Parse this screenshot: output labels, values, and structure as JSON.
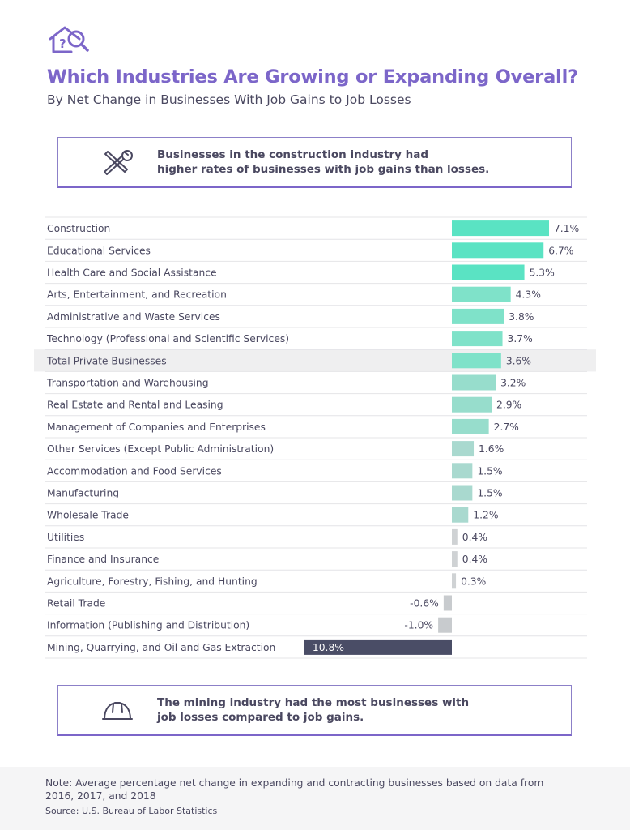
{
  "header": {
    "title": "Which Industries Are Growing or Expanding Overall?",
    "subtitle": "By Net Change in Businesses With Job Gains to Job Losses"
  },
  "callouts": {
    "top": {
      "line1": "Businesses in the construction industry had",
      "line2": "higher rates of businesses with job gains than losses.",
      "icon": "tools-icon"
    },
    "bottom": {
      "line1": "The mining industry had the most businesses with",
      "line2": "job losses compared to job gains.",
      "icon": "hard-hat-icon"
    }
  },
  "chart_data": {
    "type": "bar",
    "orientation": "horizontal",
    "categories": [
      "Construction",
      "Educational Services",
      "Health Care and Social Assistance",
      "Arts, Entertainment, and Recreation",
      "Administrative and Waste Services",
      "Technology (Professional and Scientific Services)",
      "Total Private Businesses",
      "Transportation and Warehousing",
      "Real Estate and Rental and Leasing",
      "Management of Companies and Enterprises",
      "Other Services (Except Public Administration)",
      "Accommodation and Food Services",
      "Manufacturing",
      "Wholesale Trade",
      "Utilities",
      "Finance and Insurance",
      "Agriculture, Forestry, Fishing, and Hunting",
      "Retail Trade",
      "Information (Publishing and Distribution)",
      "Mining, Quarrying, and Oil and Gas Extraction"
    ],
    "values": [
      7.1,
      6.7,
      5.3,
      4.3,
      3.8,
      3.7,
      3.6,
      3.2,
      2.9,
      2.7,
      1.6,
      1.5,
      1.5,
      1.2,
      0.4,
      0.4,
      0.3,
      -0.6,
      -1.0,
      -10.8
    ],
    "labels": [
      "7.1%",
      "6.7%",
      "5.3%",
      "4.3%",
      "3.8%",
      "3.7%",
      "3.6%",
      "3.2%",
      "2.9%",
      "2.7%",
      "1.6%",
      "1.5%",
      "1.5%",
      "1.2%",
      "0.4%",
      "0.4%",
      "0.3%",
      "-0.6%",
      "-1.0%",
      "-10.8%"
    ],
    "highlight_category": "Total Private Businesses",
    "unit": "%",
    "colors": {
      "top_positive": "#5ae3c3",
      "low_positive": "#a9d9cf",
      "near_zero": "#cfd2d4",
      "negative": "#c8cbce",
      "min_negative": "#4a4d66",
      "highlight_row": "#efeff0"
    }
  },
  "footer": {
    "note": "Note: Average percentage net change in expanding and contracting businesses based on data from 2016, 2017, and 2018",
    "source": "Source: U.S. Bureau of Labor Statistics"
  }
}
